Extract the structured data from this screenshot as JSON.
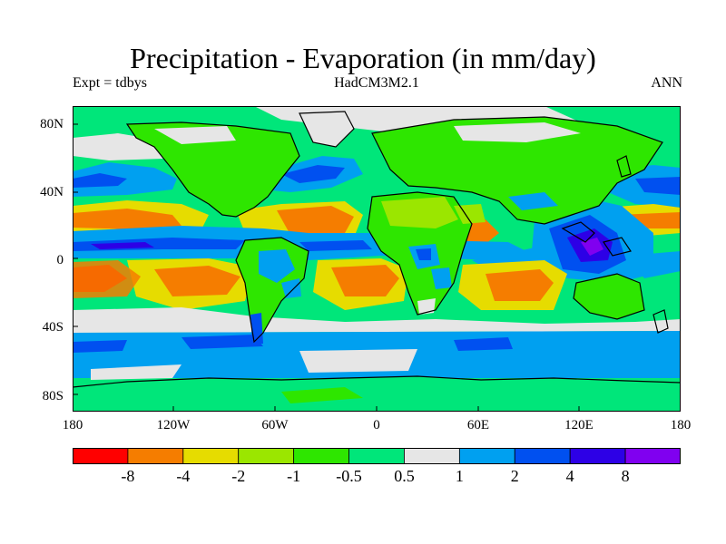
{
  "title": "Precipitation - Evaporation (in mm/day)",
  "subtitle_left": "Expt = tdbys",
  "subtitle_center": "HadCM3M2.1",
  "subtitle_right": "ANN",
  "lat_labels": [
    "80N",
    "40N",
    "0",
    "40S",
    "80S"
  ],
  "lon_labels": [
    "180",
    "120W",
    "60W",
    "0",
    "60E",
    "120E",
    "180"
  ],
  "colorbar": {
    "colors": [
      "#ff0000",
      "#f57d00",
      "#e6dc00",
      "#9be600",
      "#2ee600",
      "#00e67a",
      "#e6e6e6",
      "#00a0f0",
      "#0050f0",
      "#2d00e6",
      "#8000f0"
    ],
    "labels": [
      "-8",
      "-4",
      "-2",
      "-1",
      "-0.5",
      "0.5",
      "1",
      "2",
      "4",
      "8"
    ]
  },
  "map_colors": {
    "ocean_base": "#00e67a",
    "land_base": "#2ee600",
    "coastline": "#000000"
  }
}
